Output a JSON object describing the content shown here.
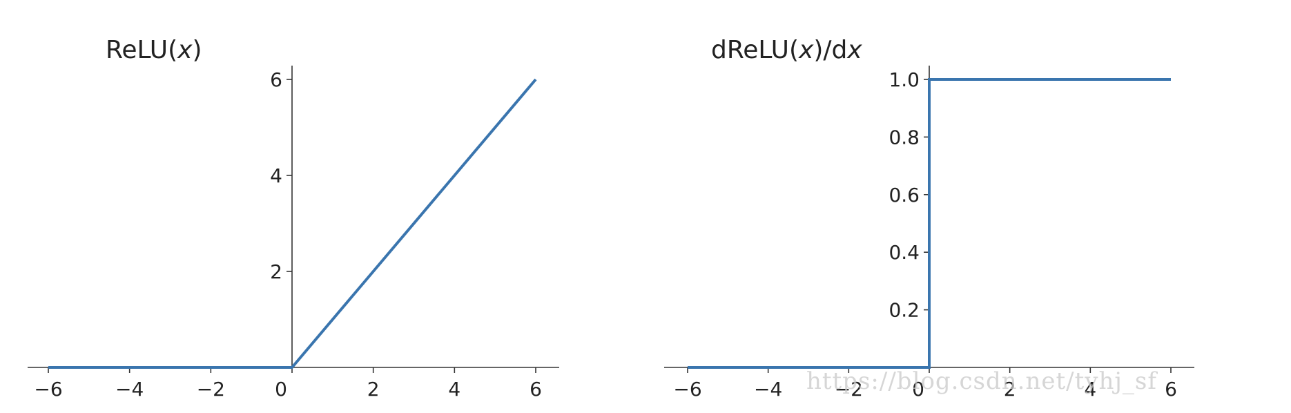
{
  "chart_data": [
    {
      "type": "line",
      "title": "ReLU(x)",
      "title_parts": [
        {
          "text": "ReLU(",
          "italic": false
        },
        {
          "text": "x",
          "italic": true
        },
        {
          "text": ")",
          "italic": false
        }
      ],
      "xlim": [
        -6,
        6
      ],
      "ylim": [
        0,
        6
      ],
      "xticks": [
        -6,
        -4,
        -2,
        0,
        2,
        4,
        6
      ],
      "xtick_labels": [
        "−6",
        "−4",
        "−2",
        "0",
        "2",
        "4",
        "6"
      ],
      "yticks": [
        2,
        4,
        6
      ],
      "ytick_labels": [
        "2",
        "4",
        "6"
      ],
      "grid": false,
      "series": [
        {
          "x": [
            -6,
            0,
            6
          ],
          "y": [
            0,
            0,
            6
          ],
          "color": "#3a75ae"
        }
      ]
    },
    {
      "type": "line",
      "title": "dReLU(x)/dx",
      "title_parts": [
        {
          "text": "dReLU(",
          "italic": false
        },
        {
          "text": "x",
          "italic": true
        },
        {
          "text": ")/d",
          "italic": false
        },
        {
          "text": "x",
          "italic": true
        }
      ],
      "xlim": [
        -6,
        6
      ],
      "ylim": [
        0,
        1
      ],
      "xticks": [
        -6,
        -4,
        -2,
        0,
        2,
        4,
        6
      ],
      "xtick_labels": [
        "−6",
        "−4",
        "−2",
        "0",
        "2",
        "4",
        "6"
      ],
      "yticks": [
        0.2,
        0.4,
        0.6,
        0.8,
        1.0
      ],
      "ytick_labels": [
        "0.2",
        "0.4",
        "0.6",
        "0.8",
        "1.0"
      ],
      "grid": false,
      "series": [
        {
          "x": [
            -6,
            0,
            0,
            6
          ],
          "y": [
            0,
            0,
            1,
            1
          ],
          "color": "#3a75ae"
        }
      ]
    }
  ],
  "watermark": "https://blog.csdn.net/tyhj_sf"
}
